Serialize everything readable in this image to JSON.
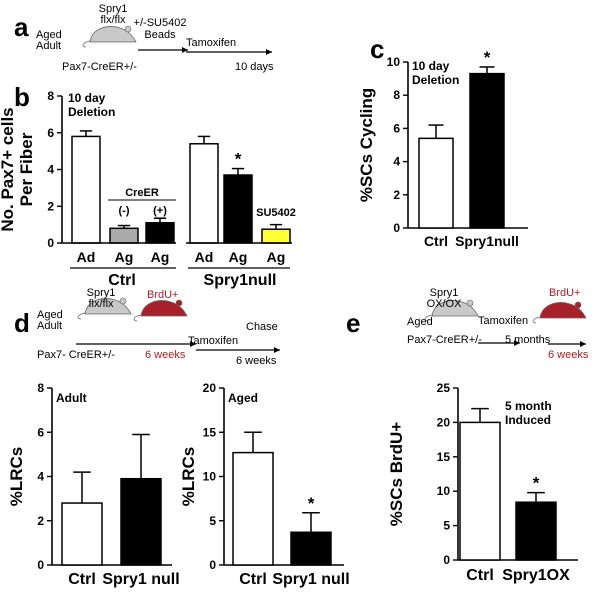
{
  "panels": {
    "a": {
      "letter": "a",
      "mouse_label": "Spry1\nflx/flx",
      "treatment": "+/-SU5402\nBeads",
      "age": "Aged\nAdult",
      "genotype": "Pax7-CreER+/-",
      "step": "Tamoxifen",
      "duration": "10 days"
    },
    "d": {
      "letter": "d",
      "mouse_label": "Spry1\nflx/flx",
      "pulse": "BrdU+",
      "pulse_time": "6 weeks",
      "age": "Aged\nAdult",
      "genotype": "Pax7- CreER+/-",
      "step": "Tamoxifen",
      "chase": "Chase",
      "duration": "6 weeks"
    },
    "e": {
      "letter": "e",
      "mouse_label": "Spry1\nOX/OX",
      "age": "Aged",
      "genotype": "Pax7-CreER+/-",
      "step": "Tamoxifen",
      "duration": "5 months",
      "pulse": "BrdU+",
      "pulse_time": "6 weeks"
    }
  },
  "chart_data": [
    {
      "id": "b",
      "letter": "b",
      "type": "bar",
      "ylabel": "No. Pax7+ cells\nPer Fiber",
      "annotation": "10 day\nDeletion",
      "ylim": [
        0,
        8
      ],
      "yticks": [
        0,
        2,
        4,
        6,
        8
      ],
      "bars": [
        {
          "label": "Ad",
          "value": 5.8,
          "error": 0.3,
          "color": "#ffffff",
          "sig": ""
        },
        {
          "label": "Ag",
          "value": 0.8,
          "error": 0.15,
          "color": "#aaaaaa",
          "sig": ""
        },
        {
          "label": "Ag",
          "value": 1.1,
          "error": 0.25,
          "color": "#000000",
          "sig": ""
        },
        {
          "label": "Ad",
          "value": 5.4,
          "error": 0.4,
          "color": "#ffffff",
          "sig": ""
        },
        {
          "label": "Ag",
          "value": 3.7,
          "error": 0.35,
          "color": "#000000",
          "sig": "*"
        },
        {
          "label": "Ag",
          "value": 0.75,
          "error": 0.25,
          "color": "#ffff33",
          "sig": ""
        }
      ],
      "groups": [
        {
          "name": "Ctrl",
          "bar_indices": [
            0,
            1,
            2
          ]
        },
        {
          "name": "Spry1null",
          "bar_indices": [
            3,
            4,
            5
          ]
        }
      ],
      "creer_label": "CreER",
      "creer_minus": "(-)",
      "creer_plus": "(+)",
      "su5402_label": "SU5402"
    },
    {
      "id": "c",
      "letter": "c",
      "type": "bar",
      "ylabel": "%SCs Cycling",
      "annotation": "10 day\nDeletion",
      "ylim": [
        0,
        10
      ],
      "yticks": [
        0,
        2,
        4,
        6,
        8,
        10
      ],
      "bars": [
        {
          "label": "Ctrl",
          "value": 5.4,
          "error": 0.8,
          "color": "#ffffff",
          "sig": ""
        },
        {
          "label": "Spry1null",
          "value": 9.3,
          "error": 0.4,
          "color": "#000000",
          "sig": "*"
        }
      ]
    },
    {
      "id": "d1",
      "type": "bar",
      "ylabel": "%LRCs",
      "annotation": "Adult",
      "ylim": [
        0,
        8
      ],
      "yticks": [
        0,
        2,
        4,
        6,
        8
      ],
      "bars": [
        {
          "label": "Ctrl",
          "value": 2.8,
          "error": 1.4,
          "color": "#ffffff",
          "sig": ""
        },
        {
          "label": "Spry1 null",
          "value": 3.9,
          "error": 2.0,
          "color": "#000000",
          "sig": ""
        }
      ]
    },
    {
      "id": "d2",
      "type": "bar",
      "ylabel": "%LRCs",
      "annotation": "Aged",
      "ylim": [
        0,
        20
      ],
      "yticks": [
        0,
        5,
        10,
        15,
        20
      ],
      "bars": [
        {
          "label": "Ctrl",
          "value": 12.7,
          "error": 2.3,
          "color": "#ffffff",
          "sig": ""
        },
        {
          "label": "Spry1 null",
          "value": 3.7,
          "error": 2.2,
          "color": "#000000",
          "sig": "*"
        }
      ]
    },
    {
      "id": "e1",
      "type": "bar",
      "ylabel": "%SCs BrdU+",
      "annotation": "5 month\nInduced",
      "ylim": [
        0,
        25
      ],
      "yticks": [
        0,
        5,
        10,
        15,
        20,
        25
      ],
      "bars": [
        {
          "label": "Ctrl",
          "value": 20.0,
          "error": 2.0,
          "color": "#ffffff",
          "sig": ""
        },
        {
          "label": "Spry1OX",
          "value": 8.4,
          "error": 1.4,
          "color": "#000000",
          "sig": "*"
        }
      ]
    }
  ]
}
